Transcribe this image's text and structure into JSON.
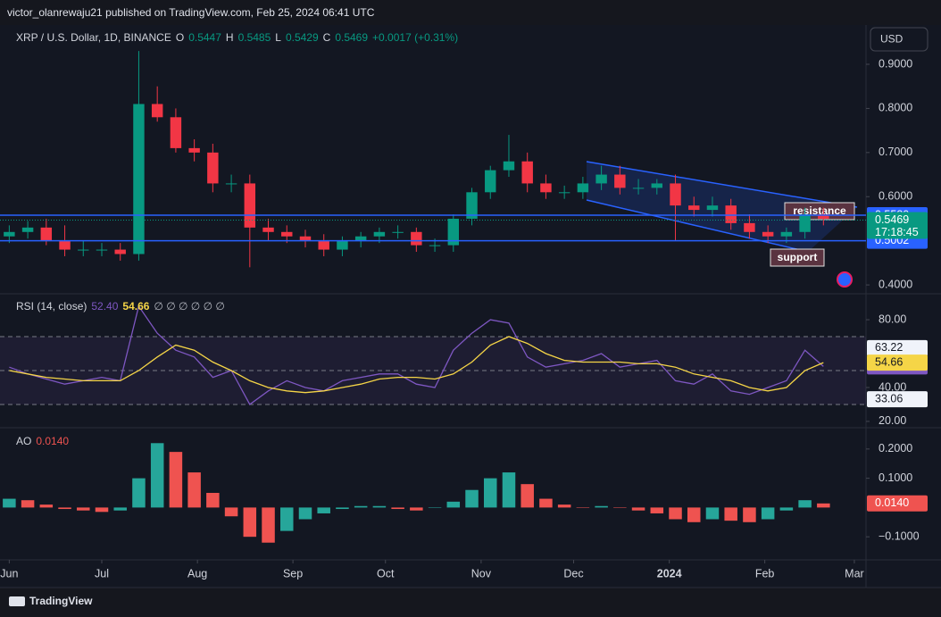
{
  "header": {
    "publisher": "victor_olanrewaju21 published on TradingView.com, Feb 25, 2024 06:41 UTC",
    "brand": "TradingView"
  },
  "chart_data": [
    {
      "type": "candlestick",
      "symbol": "XRP / U.S. Dollar, 1D, BINANCE",
      "ohlc": [
        {
          "name": "O",
          "value": 0.5447
        },
        {
          "name": "H",
          "value": 0.5485
        },
        {
          "name": "L",
          "value": 0.5429
        },
        {
          "name": "C",
          "value": 0.5469
        }
      ],
      "change": "+0.0017 (+0.31%)",
      "currency": "USD",
      "colors": {
        "up": "#089981",
        "down": "#f23645"
      },
      "open": [
        0.51,
        0.52,
        0.53,
        0.5,
        0.48,
        0.48,
        0.48,
        0.47,
        0.81,
        0.78,
        0.71,
        0.7,
        0.63,
        0.63,
        0.53,
        0.52,
        0.51,
        0.5,
        0.48,
        0.5,
        0.51,
        0.52,
        0.52,
        0.49,
        0.49,
        0.55,
        0.61,
        0.66,
        0.68,
        0.63,
        0.61,
        0.61,
        0.63,
        0.65,
        0.62,
        0.62,
        0.63,
        0.58,
        0.57,
        0.58,
        0.54,
        0.52,
        0.51,
        0.52,
        0.56
      ],
      "high": [
        0.535,
        0.545,
        0.55,
        0.535,
        0.5,
        0.495,
        0.495,
        0.93,
        0.85,
        0.8,
        0.73,
        0.72,
        0.65,
        0.65,
        0.55,
        0.535,
        0.525,
        0.515,
        0.51,
        0.52,
        0.53,
        0.535,
        0.53,
        0.505,
        0.56,
        0.62,
        0.67,
        0.74,
        0.7,
        0.65,
        0.625,
        0.645,
        0.67,
        0.67,
        0.64,
        0.64,
        0.65,
        0.6,
        0.6,
        0.595,
        0.56,
        0.535,
        0.53,
        0.575,
        0.575
      ],
      "low": [
        0.495,
        0.505,
        0.49,
        0.465,
        0.465,
        0.465,
        0.455,
        0.455,
        0.77,
        0.7,
        0.68,
        0.61,
        0.61,
        0.44,
        0.5,
        0.495,
        0.485,
        0.465,
        0.465,
        0.485,
        0.495,
        0.505,
        0.475,
        0.475,
        0.475,
        0.535,
        0.595,
        0.645,
        0.61,
        0.595,
        0.595,
        0.595,
        0.615,
        0.605,
        0.605,
        0.605,
        0.5,
        0.555,
        0.555,
        0.525,
        0.505,
        0.495,
        0.495,
        0.505,
        0.535
      ],
      "close": [
        0.52,
        0.53,
        0.5,
        0.48,
        0.48,
        0.48,
        0.47,
        0.81,
        0.78,
        0.71,
        0.7,
        0.63,
        0.63,
        0.53,
        0.52,
        0.51,
        0.5,
        0.48,
        0.5,
        0.51,
        0.52,
        0.52,
        0.49,
        0.49,
        0.55,
        0.61,
        0.66,
        0.68,
        0.63,
        0.61,
        0.61,
        0.63,
        0.65,
        0.62,
        0.62,
        0.63,
        0.58,
        0.57,
        0.58,
        0.54,
        0.52,
        0.51,
        0.52,
        0.56,
        0.55
      ],
      "ylim": [
        0.384,
        0.985
      ],
      "yticks": [
        {
          "value": 0.9,
          "label": "0.9000"
        },
        {
          "value": 0.8,
          "label": "0.8000"
        },
        {
          "value": 0.7,
          "label": "0.7000"
        },
        {
          "value": 0.6,
          "label": "0.6000"
        },
        {
          "value": 0.4,
          "label": "0.4000"
        }
      ],
      "lines": [
        {
          "value": 0.558,
          "label": "0.5580"
        },
        0.5002
      ],
      "line_color": "#2962ff",
      "last": {
        "value": 0.5469,
        "countdown": "17:18:45"
      },
      "annotations": [
        "resistance",
        "support"
      ],
      "xlim": [
        -0.5,
        46.3
      ],
      "xticks": [
        {
          "value": 0,
          "label": "Jun"
        },
        {
          "value": 5,
          "label": "Jul"
        },
        {
          "value": 10.17,
          "label": "Aug"
        },
        {
          "value": 15.33,
          "label": "Sep"
        },
        {
          "value": 20.33,
          "label": "Oct"
        },
        {
          "value": 25.5,
          "label": "Nov"
        },
        {
          "value": 30.5,
          "label": "Dec"
        },
        {
          "value": 35.67,
          "label": "2024"
        },
        {
          "value": 40.83,
          "label": "Feb"
        },
        {
          "value": 45.67,
          "label": "Mar"
        }
      ]
    },
    {
      "type": "line",
      "title": "RSI (14, close)",
      "extras": "∅ ∅ ∅ ∅ ∅ ∅",
      "series": [
        {
          "color": "#7e57c2",
          "last_label": "52.40",
          "values": [
            52,
            48,
            45,
            42,
            44,
            46,
            44,
            88,
            72,
            62,
            58,
            46,
            50,
            30,
            38,
            44,
            40,
            38,
            44,
            46,
            48,
            48,
            42,
            40,
            62,
            72,
            80,
            78,
            58,
            52,
            54,
            56,
            60,
            52,
            54,
            56,
            44,
            42,
            48,
            38,
            36,
            40,
            44,
            62,
            52.4
          ]
        },
        {
          "color": "#f5d547",
          "last_label": "54.66",
          "values": [
            50,
            48,
            46,
            45,
            44,
            44,
            44,
            50,
            58,
            65,
            62,
            55,
            50,
            44,
            40,
            38,
            37,
            38,
            40,
            42,
            45,
            46,
            46,
            45,
            48,
            55,
            65,
            70,
            66,
            60,
            56,
            55,
            55,
            55,
            54,
            54,
            52,
            48,
            46,
            44,
            40,
            38,
            40,
            50,
            54.66
          ]
        }
      ],
      "levels": [
        70,
        50,
        30
      ],
      "markers": [
        63.22,
        33.06
      ],
      "ylim": [
        16.8,
        93.2
      ],
      "yticks": [
        {
          "value": 80,
          "label": "80.00"
        },
        {
          "value": 40,
          "label": "40.00"
        },
        {
          "value": 20,
          "label": "20.00"
        }
      ]
    },
    {
      "type": "bar",
      "title": "AO",
      "last_label": "0.0140",
      "colors": {
        "up": "#26a69a",
        "down": "#ef5350"
      },
      "values": [
        0.03,
        0.025,
        0.01,
        -0.005,
        -0.01,
        -0.015,
        -0.01,
        0.1,
        0.22,
        0.19,
        0.12,
        0.05,
        -0.03,
        -0.1,
        -0.12,
        -0.08,
        -0.04,
        -0.02,
        -0.005,
        0.005,
        0.005,
        -0.005,
        -0.01,
        0,
        0.02,
        0.06,
        0.1,
        0.12,
        0.08,
        0.03,
        0.01,
        0,
        0.005,
        0,
        -0.01,
        -0.02,
        -0.04,
        -0.05,
        -0.04,
        -0.045,
        -0.05,
        -0.04,
        -0.01,
        0.025,
        0.014
      ],
      "ylim": [
        -0.1727,
        0.2697
      ],
      "yticks": [
        {
          "value": 0.2,
          "label": "0.2000"
        },
        {
          "value": 0.1,
          "label": "0.1000"
        },
        {
          "value": -0.1,
          "label": "−0.1000"
        }
      ]
    }
  ]
}
